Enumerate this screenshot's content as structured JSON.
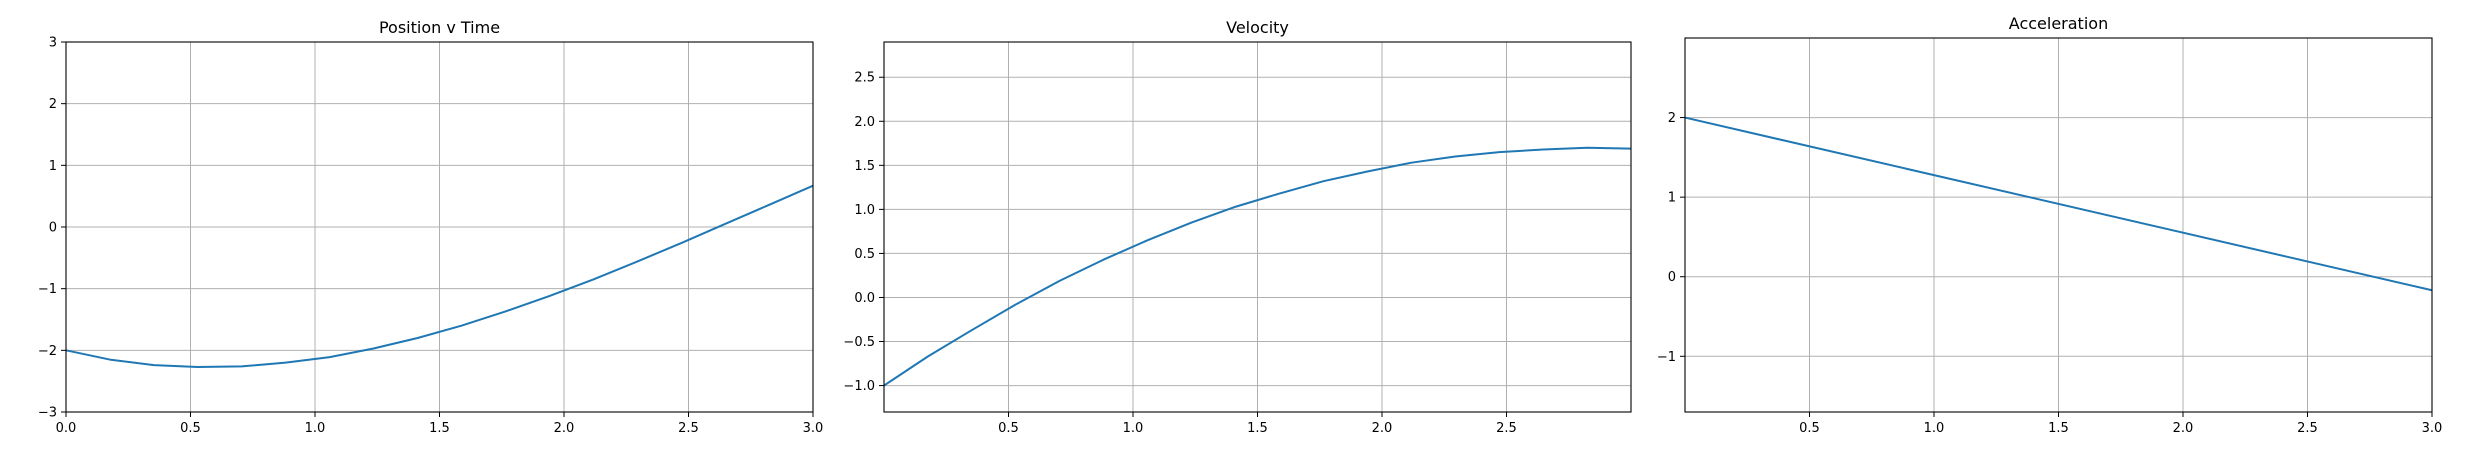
{
  "chart_data": [
    {
      "type": "line",
      "title": "Position v Time",
      "xlabel": "",
      "ylabel": "",
      "xlim": [
        0,
        3
      ],
      "ylim": [
        -3,
        3
      ],
      "xticks": [
        0.0,
        0.5,
        1.0,
        1.5,
        2.0,
        2.5,
        3.0
      ],
      "xtick_labels": [
        "0.0",
        "0.5",
        "1.0",
        "1.5",
        "2.0",
        "2.5",
        "3.0"
      ],
      "yticks": [
        -3,
        -2,
        -1,
        0,
        1,
        2,
        3
      ],
      "ytick_labels": [
        "−3",
        "−2",
        "−1",
        "0",
        "1",
        "2",
        "3"
      ],
      "grid": true,
      "color": "#1f77b4",
      "series": [
        {
          "x": [
            0.0,
            0.176,
            0.353,
            0.529,
            0.706,
            0.882,
            1.059,
            1.235,
            1.412,
            1.588,
            1.765,
            1.941,
            2.118,
            2.294,
            2.471,
            2.647,
            2.824,
            3.0
          ],
          "y": [
            -2.0,
            -2.15,
            -2.24,
            -2.27,
            -2.26,
            -2.2,
            -2.11,
            -1.97,
            -1.8,
            -1.6,
            -1.37,
            -1.12,
            -0.85,
            -0.56,
            -0.26,
            0.05,
            0.36,
            0.67
          ]
        }
      ]
    },
    {
      "type": "line",
      "title": "Velocity",
      "xlabel": "",
      "ylabel": "",
      "xlim": [
        0,
        3
      ],
      "ylim": [
        -1.3,
        2.9
      ],
      "xticks": [
        0.5,
        1.0,
        1.5,
        2.0,
        2.5
      ],
      "xtick_labels": [
        "0.5",
        "1.0",
        "1.5",
        "2.0",
        "2.5"
      ],
      "yticks": [
        -1.0,
        -0.5,
        0.0,
        0.5,
        1.0,
        1.5,
        2.0,
        2.5
      ],
      "ytick_labels": [
        "−1.0",
        "−0.5",
        "0.0",
        "0.5",
        "1.0",
        "1.5",
        "2.0",
        "2.5"
      ],
      "grid": true,
      "color": "#1f77b4",
      "series": [
        {
          "x": [
            0.0,
            0.176,
            0.353,
            0.529,
            0.706,
            0.882,
            1.059,
            1.235,
            1.412,
            1.588,
            1.765,
            1.941,
            2.118,
            2.294,
            2.471,
            2.647,
            2.824,
            3.0
          ],
          "y": [
            -1.0,
            -0.67,
            -0.37,
            -0.08,
            0.19,
            0.43,
            0.65,
            0.85,
            1.03,
            1.18,
            1.32,
            1.43,
            1.53,
            1.6,
            1.65,
            1.68,
            1.7,
            1.69
          ]
        }
      ]
    },
    {
      "type": "line",
      "title": "Acceleration",
      "xlabel": "",
      "ylabel": "",
      "xlim": [
        0,
        3
      ],
      "ylim": [
        -1.7,
        3.0
      ],
      "xticks": [
        0.5,
        1.0,
        1.5,
        2.0,
        2.5,
        3.0
      ],
      "xtick_labels": [
        "0.5",
        "1.0",
        "1.5",
        "2.0",
        "2.5",
        "3.0"
      ],
      "yticks": [
        -1,
        0,
        1,
        2
      ],
      "ytick_labels": [
        "−1",
        "0",
        "1",
        "2"
      ],
      "grid": true,
      "color": "#1f77b4",
      "series": [
        {
          "x": [
            0.0,
            3.0
          ],
          "y": [
            2.0,
            -0.17
          ]
        }
      ]
    }
  ]
}
